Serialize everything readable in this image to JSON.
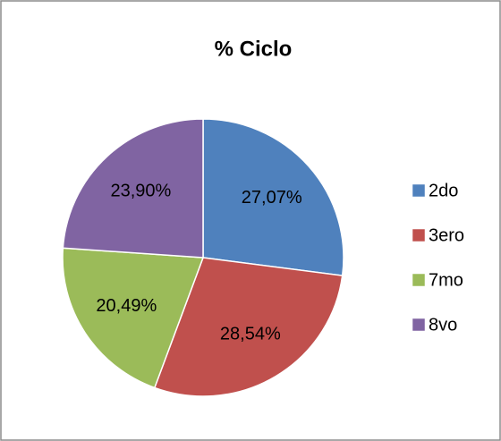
{
  "chart_data": {
    "type": "pie",
    "title": "% Ciclo",
    "categories": [
      "2do",
      "3ero",
      "7mo",
      "8vo"
    ],
    "values": [
      27.07,
      28.54,
      20.49,
      23.9
    ],
    "value_labels": [
      "27,07%",
      "28,54%",
      "20,49%",
      "23,90%"
    ],
    "colors": [
      "#4f81bd",
      "#c0504d",
      "#9bbb59",
      "#8064a2"
    ],
    "legend": "right"
  }
}
